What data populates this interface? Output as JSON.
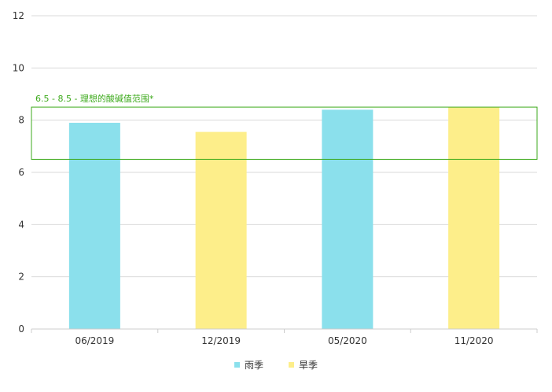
{
  "chart_data": {
    "type": "bar",
    "categories": [
      "06/2019",
      "12/2019",
      "05/2020",
      "11/2020"
    ],
    "values": [
      7.9,
      7.55,
      8.4,
      8.5
    ],
    "series_by_bar": [
      "雨季",
      "旱季",
      "雨季",
      "旱季"
    ],
    "legend": [
      {
        "name": "雨季",
        "color": "#8be0ec"
      },
      {
        "name": "旱季",
        "color": "#fdee8a"
      }
    ],
    "ylim": [
      0,
      12
    ],
    "yticks": [
      0,
      2,
      4,
      6,
      8,
      10,
      12
    ],
    "grid": true,
    "legend_position": "bottom",
    "band": {
      "low": 6.5,
      "high": 8.5,
      "label": "6.5 - 8.5 - 理想的酸碱值范围*",
      "color": "#3daa1c"
    },
    "xlabel": "",
    "ylabel": "",
    "title": ""
  }
}
